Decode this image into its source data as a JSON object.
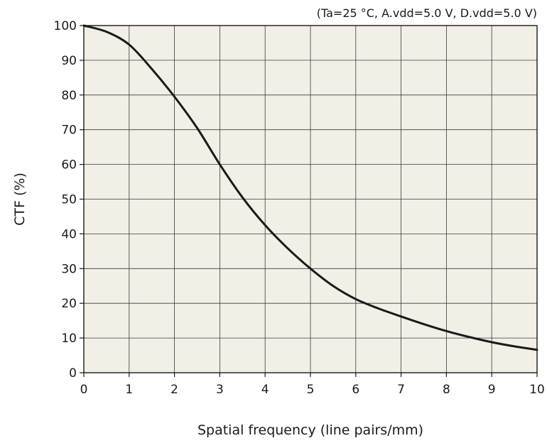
{
  "chart_data": {
    "type": "line",
    "conditions": "(Ta=25 °C, A.vdd=5.0 V, D.vdd=5.0 V)",
    "xlabel": "Spatial frequency (line pairs/mm)",
    "ylabel": "CTF (%)",
    "xlim": [
      0,
      10
    ],
    "ylim": [
      0,
      100
    ],
    "x_ticks": [
      "0",
      "1",
      "2",
      "3",
      "4",
      "5",
      "6",
      "7",
      "8",
      "9",
      "10"
    ],
    "y_ticks": [
      "0",
      "10",
      "20",
      "30",
      "40",
      "50",
      "60",
      "70",
      "80",
      "90",
      "100"
    ],
    "grid": true,
    "plot_background": "#f2efe6",
    "line_color": "#1a1a1a",
    "series": [
      {
        "x": [
          0,
          0.5,
          1,
          1.5,
          2,
          2.5,
          3,
          3.5,
          4,
          4.5,
          5,
          5.5,
          6,
          6.5,
          7,
          7.5,
          8,
          8.5,
          9,
          9.5,
          10
        ],
        "y": [
          100,
          98.2,
          94.5,
          87.5,
          79.5,
          70.5,
          60,
          50.5,
          42.5,
          35.8,
          30,
          25,
          21.2,
          18.5,
          16.2,
          14,
          12,
          10.3,
          8.8,
          7.6,
          6.6
        ]
      }
    ]
  }
}
